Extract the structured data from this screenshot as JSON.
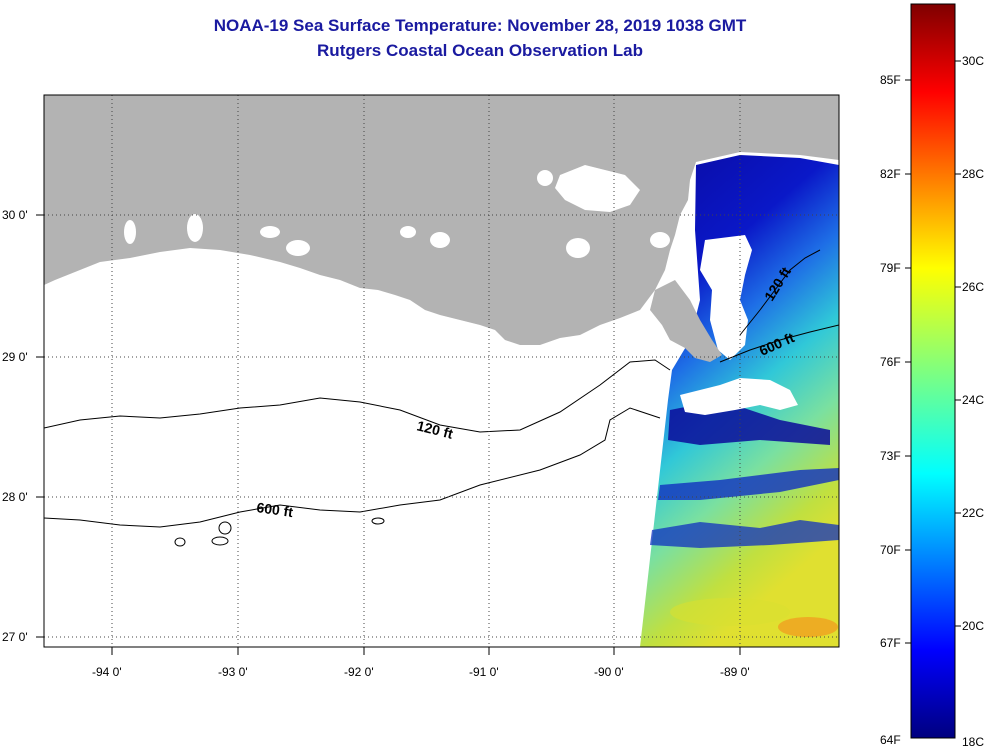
{
  "title": {
    "line1": "NOAA-19 Sea Surface Temperature:  November 28, 2019 1038 GMT",
    "line2": "Rutgers Coastal Ocean Observation Lab"
  },
  "map": {
    "lon_ticks": [
      "-94 0'",
      "-93 0'",
      "-92 0'",
      "-91 0'",
      "-90 0'",
      "-89 0'"
    ],
    "lat_ticks": [
      "30 0'",
      "29 0'",
      "28 0'",
      "27 0'"
    ],
    "contour_labels": [
      "120 ft",
      "600 ft",
      "120 ft",
      "600 ft"
    ],
    "colors": {
      "land": "#b3b3b3",
      "cloud": "#ffffff",
      "ocean_nodata": "#ffffff",
      "contour": "#000000"
    }
  },
  "colorbar": {
    "fahrenheit_labels": [
      "85F",
      "82F",
      "79F",
      "76F",
      "73F",
      "70F",
      "67F",
      "64F"
    ],
    "celsius_labels": [
      "30C",
      "28C",
      "26C",
      "24C",
      "22C",
      "20C",
      "18C"
    ],
    "colormap": "jet",
    "range_c": [
      18,
      31.5
    ]
  }
}
